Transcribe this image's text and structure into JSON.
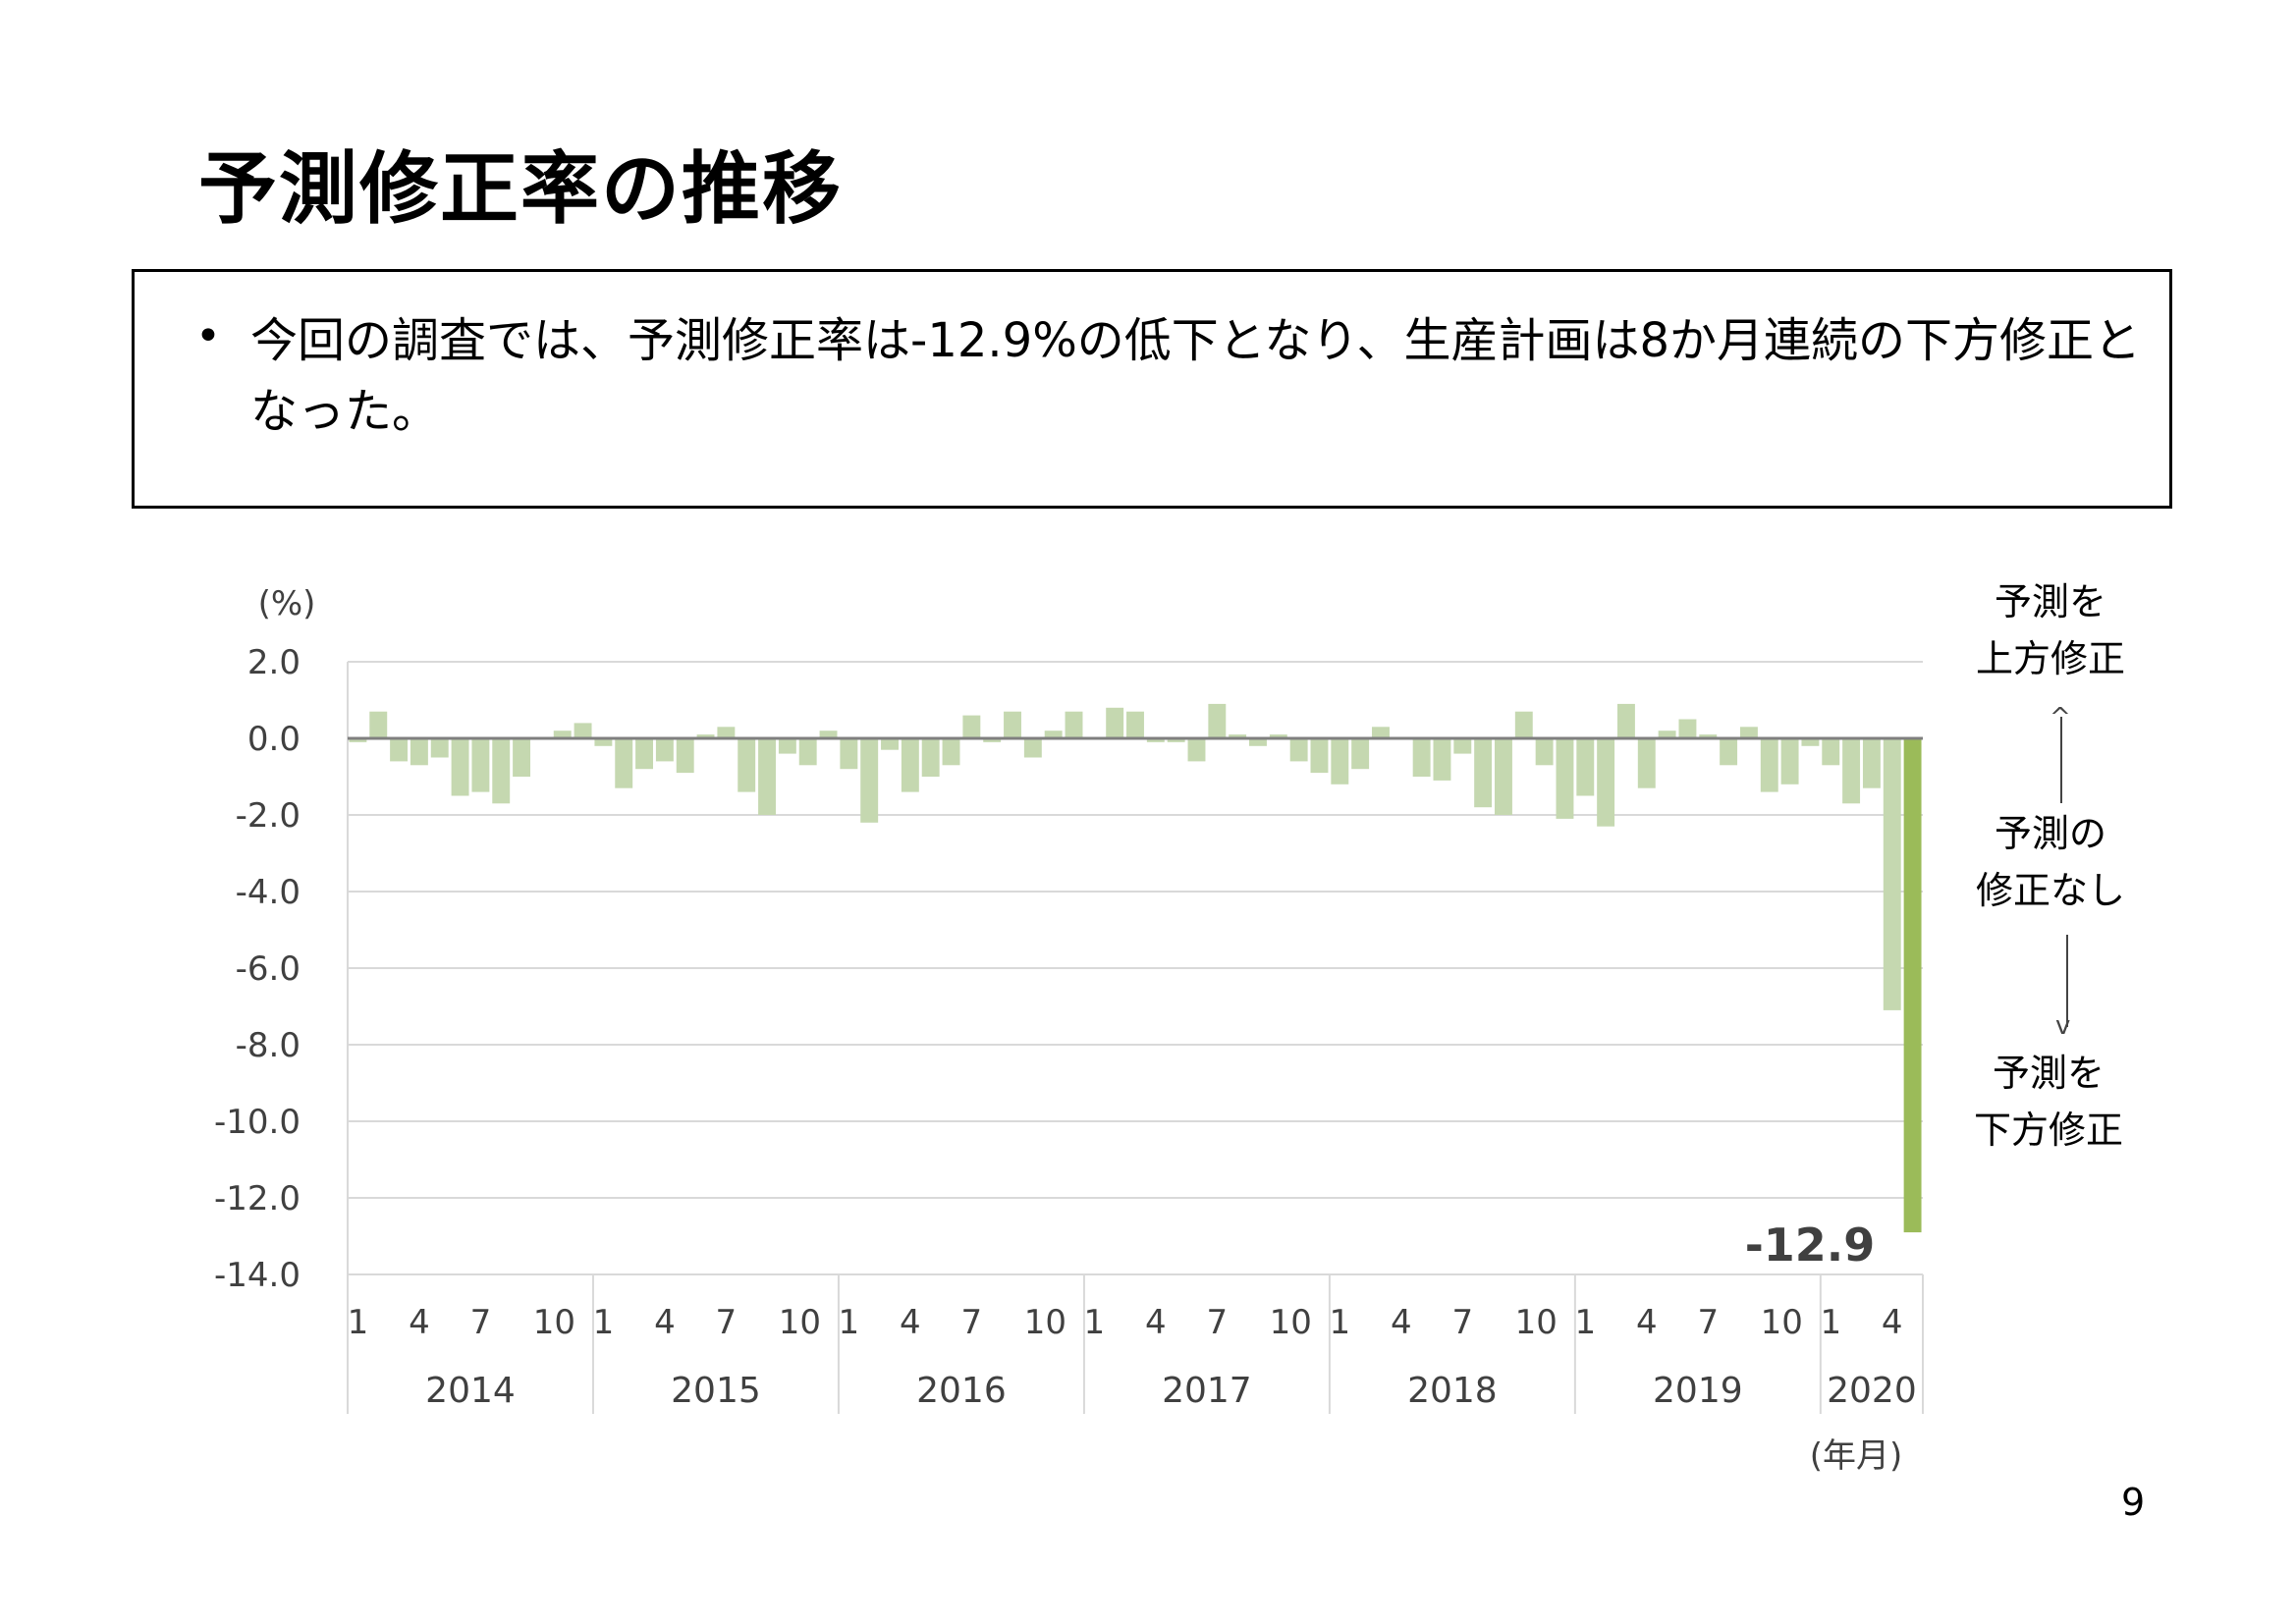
{
  "slide": {
    "title": "予測修正率の推移",
    "summary_text": "今回の調査では、予測修正率は-12.9%の低下となり、生産計画は8か月連続の下方修正となった。",
    "page_number": "9"
  },
  "side_labels": {
    "up": "予測を\n上方修正",
    "none": "予測の\n修正なし",
    "down": "予測を\n下方修正"
  },
  "colors": {
    "bar": "#c5d8b0",
    "bar_highlight": "#9bbb59",
    "zero_line": "#7f7f7f",
    "grid": "#d9d9d9",
    "axis_text": "#404040"
  },
  "chart_data": {
    "type": "bar",
    "ylabel": "(%)",
    "xlabel": "(年月)",
    "ylim": [
      -14,
      2
    ],
    "yticks": [
      "2.0",
      "0.0",
      "-2.0",
      "-4.0",
      "-6.0",
      "-8.0",
      "-10.0",
      "-12.0",
      "-14.0"
    ],
    "grid": true,
    "month_tick_labels": [
      "1",
      "4",
      "7",
      "10"
    ],
    "years": [
      {
        "label": "2014",
        "months": 12
      },
      {
        "label": "2015",
        "months": 12
      },
      {
        "label": "2016",
        "months": 12
      },
      {
        "label": "2017",
        "months": 12
      },
      {
        "label": "2018",
        "months": 12
      },
      {
        "label": "2019",
        "months": 12
      },
      {
        "label": "2020",
        "months": 5
      }
    ],
    "values": [
      -0.1,
      0.7,
      -0.6,
      -0.7,
      -0.5,
      -1.5,
      -1.4,
      -1.7,
      -1.0,
      0.0,
      0.2,
      0.4,
      -0.2,
      -1.3,
      -0.8,
      -0.6,
      -0.9,
      0.1,
      0.3,
      -1.4,
      -2.0,
      -0.4,
      -0.7,
      0.2,
      -0.8,
      -2.2,
      -0.3,
      -1.4,
      -1.0,
      -0.7,
      0.6,
      -0.1,
      0.7,
      -0.5,
      0.2,
      0.7,
      0.0,
      0.8,
      0.7,
      -0.1,
      -0.1,
      -0.6,
      0.9,
      0.1,
      -0.2,
      0.1,
      -0.6,
      -0.9,
      -1.2,
      -0.8,
      0.3,
      0.0,
      -1.0,
      -1.1,
      -0.4,
      -1.8,
      -2.0,
      0.7,
      -0.7,
      -2.1,
      -1.5,
      -2.3,
      0.9,
      -1.3,
      0.2,
      0.5,
      0.1,
      -0.7,
      0.3,
      -1.4,
      -1.2,
      -0.2,
      -0.7,
      -1.7,
      -1.3,
      -7.1,
      -12.9
    ],
    "highlight_label": "-12.9"
  }
}
